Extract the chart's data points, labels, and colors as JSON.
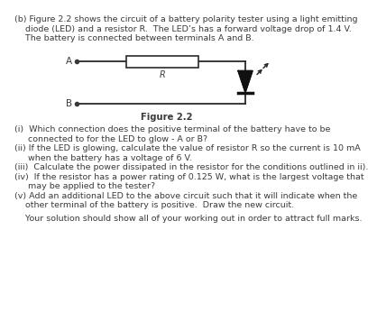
{
  "bg_color": "#ffffff",
  "text_color": "#3a3a3a",
  "intro_lines": [
    "(b) Figure 2.2 shows the circuit of a battery polarity tester using a light emitting",
    "    diode (LED) and a resistor R.  The LED’s has a forward voltage drop of 1.4 V.",
    "    The battery is connected between terminals A and B."
  ],
  "figure_caption": "Figure 2.2",
  "q_lines": [
    [
      "(i)  Which connection does the positive terminal of the battery have to be"
    ],
    [
      "     connected to for the LED to glow - A or B?"
    ],
    [
      "(ii) If the LED is glowing, calculate the value of resistor R so the current is 10 mA"
    ],
    [
      "     when the battery has a voltage of 6 V."
    ],
    [
      "(iii)  Calculate the power dissipated in the resistor for the conditions outlined in ii)."
    ],
    [
      "(iv)  If the resistor has a power rating of 0.125 W, what is the largest voltage that"
    ],
    [
      "     may be applied to the tester?"
    ],
    [
      "(v) Add an additional LED to the above circuit such that it will indicate when the"
    ],
    [
      "    other terminal of the battery is positive.  Draw the new circuit."
    ]
  ],
  "footer": "    Your solution should show all of your working out in order to attract full marks.",
  "font_size": 6.8,
  "caption_font_size": 7.2
}
